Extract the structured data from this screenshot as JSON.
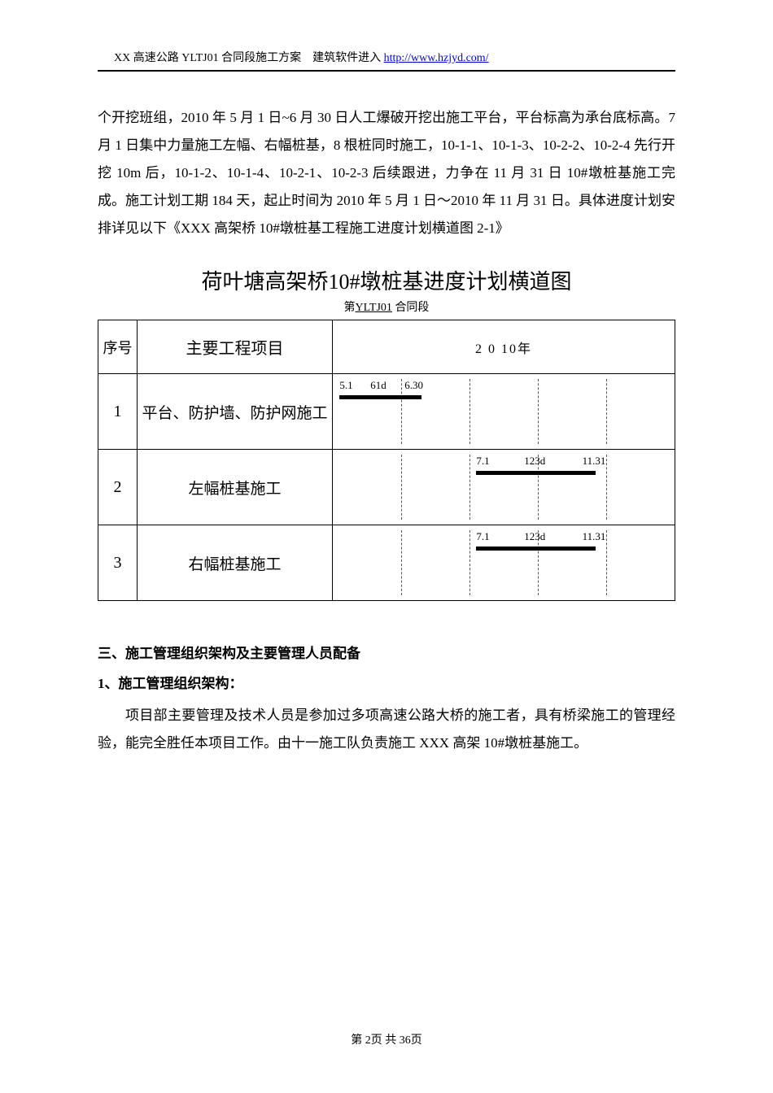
{
  "header": {
    "prefix": "XX 高速公路 YLTJ01 合同段施工方案　建筑软件进入  ",
    "link_text": "http://www.hzjyd.com/"
  },
  "intro_paragraph": "个开挖班组，2010 年 5 月 1 日~6 月 30 日人工爆破开挖出施工平台，平台标高为承台底标高。7 月 1 日集中力量施工左幅、右幅桩基，8 根桩同时施工，10-1-1、10-1-3、10-2-2、10-2-4 先行开挖 10m 后，10-1-2、10-1-4、10-2-1、10-2-3 后续跟进，力争在 11 月 31 日 10#墩桩基施工完成。施工计划工期 184 天，起止时间为 2010 年 5 月 1 日～2010 年 11 月 31 日。具体进度计划安排详见以下《XXX 高架桥 10#墩桩基工程施工进度计划横道图 2-1》",
  "chart": {
    "title": "荷叶塘高架桥10#墩桩基进度计划横道图",
    "subtitle_prefix": "第",
    "subtitle_underlined": "YLTJ01",
    "subtitle_suffix": " 合同段",
    "header_seq": "序号",
    "header_project": "主要工程项目",
    "header_year": "2 0 10年",
    "grid_positions_pct": [
      0,
      20,
      40,
      60,
      80,
      100
    ],
    "rows": [
      {
        "seq": "1",
        "project": "平台、防护墙、防护网施工",
        "labels": [
          {
            "text": "5.1",
            "left_pct": 2
          },
          {
            "text": "61d",
            "left_pct": 11
          },
          {
            "text": "6.30",
            "left_pct": 21
          }
        ],
        "bar": {
          "left_pct": 2,
          "width_pct": 24
        }
      },
      {
        "seq": "2",
        "project": "左幅桩基施工",
        "labels": [
          {
            "text": "7.1",
            "left_pct": 42
          },
          {
            "text": "123d",
            "left_pct": 56
          },
          {
            "text": "11.31",
            "left_pct": 73
          }
        ],
        "bar": {
          "left_pct": 42,
          "width_pct": 35
        }
      },
      {
        "seq": "3",
        "project": "右幅桩基施工",
        "labels": [
          {
            "text": "7.1",
            "left_pct": 42
          },
          {
            "text": "123d",
            "left_pct": 56
          },
          {
            "text": "11.31",
            "left_pct": 73
          }
        ],
        "bar": {
          "left_pct": 42,
          "width_pct": 35
        }
      }
    ]
  },
  "section3": {
    "heading": "三、施工管理组织架构及主要管理人员配备",
    "sub1": "1、施工管理组织架构：",
    "para": "项目部主要管理及技术人员是参加过多项高速公路大桥的施工者，具有桥梁施工的管理经验，能完全胜任本项目工作。由十一施工队负责施工 XXX 高架 10#墩桩基施工。"
  },
  "footer": "第 2页 共 36页"
}
